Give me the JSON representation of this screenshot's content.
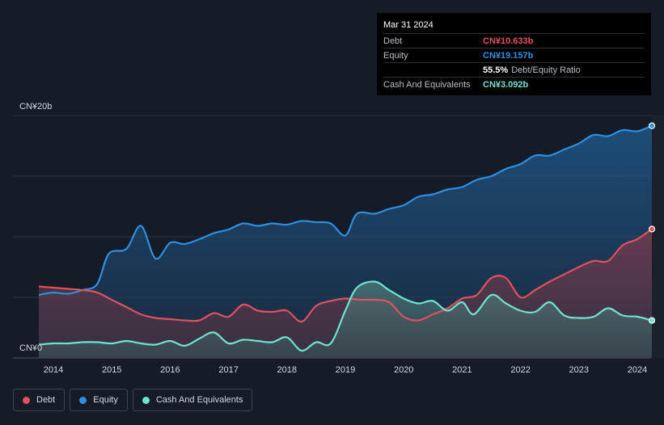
{
  "tooltip": {
    "date": "Mar 31 2024",
    "rows": [
      {
        "label": "Debt",
        "value": "CN¥10.633b",
        "color": "#e0505e"
      },
      {
        "label": "Equity",
        "value": "CN¥19.157b",
        "color": "#2d8fe0"
      },
      {
        "label": "",
        "value": "55.5%",
        "sub": "Debt/Equity Ratio",
        "color": "#ffffff"
      },
      {
        "label": "Cash And Equivalents",
        "value": "CN¥3.092b",
        "color": "#6fe3cf"
      }
    ]
  },
  "legend": [
    {
      "label": "Debt",
      "color": "#e0505e"
    },
    {
      "label": "Equity",
      "color": "#2d8fe0"
    },
    {
      "label": "Cash And Equivalents",
      "color": "#6fe3cf"
    }
  ],
  "chart_data": {
    "type": "area",
    "y_unit": "CN¥ billions",
    "ylim": [
      0,
      20
    ],
    "y_tick_labels": [
      "CN¥20b",
      "CN¥0"
    ],
    "x_ticks": [
      2014,
      2015,
      2016,
      2017,
      2018,
      2019,
      2020,
      2021,
      2022,
      2023,
      2024
    ],
    "xlim": [
      2013.27,
      2024.25
    ],
    "grid": true,
    "series": [
      {
        "name": "Equity",
        "color": "#2d8fe0",
        "points": [
          [
            2013.75,
            5.2
          ],
          [
            2014.0,
            5.4
          ],
          [
            2014.25,
            5.3
          ],
          [
            2014.5,
            5.6
          ],
          [
            2014.75,
            6.1
          ],
          [
            2014.95,
            8.6
          ],
          [
            2015.25,
            9.0
          ],
          [
            2015.5,
            10.9
          ],
          [
            2015.75,
            8.2
          ],
          [
            2016.0,
            9.5
          ],
          [
            2016.25,
            9.4
          ],
          [
            2016.5,
            9.8
          ],
          [
            2016.75,
            10.3
          ],
          [
            2017.0,
            10.6
          ],
          [
            2017.25,
            11.1
          ],
          [
            2017.5,
            10.9
          ],
          [
            2017.75,
            11.1
          ],
          [
            2018.0,
            11.0
          ],
          [
            2018.25,
            11.3
          ],
          [
            2018.5,
            11.2
          ],
          [
            2018.75,
            11.1
          ],
          [
            2019.0,
            10.1
          ],
          [
            2019.2,
            11.9
          ],
          [
            2019.5,
            11.9
          ],
          [
            2019.75,
            12.3
          ],
          [
            2020.0,
            12.6
          ],
          [
            2020.25,
            13.3
          ],
          [
            2020.5,
            13.5
          ],
          [
            2020.75,
            13.9
          ],
          [
            2021.0,
            14.1
          ],
          [
            2021.25,
            14.7
          ],
          [
            2021.5,
            15.0
          ],
          [
            2021.75,
            15.6
          ],
          [
            2022.0,
            16.0
          ],
          [
            2022.25,
            16.7
          ],
          [
            2022.5,
            16.7
          ],
          [
            2022.75,
            17.2
          ],
          [
            2023.0,
            17.7
          ],
          [
            2023.25,
            18.4
          ],
          [
            2023.5,
            18.3
          ],
          [
            2023.75,
            18.8
          ],
          [
            2024.0,
            18.7
          ],
          [
            2024.25,
            19.157
          ]
        ]
      },
      {
        "name": "Debt",
        "color": "#e0505e",
        "points": [
          [
            2013.75,
            5.9
          ],
          [
            2014.0,
            5.8
          ],
          [
            2014.25,
            5.7
          ],
          [
            2014.5,
            5.6
          ],
          [
            2014.75,
            5.4
          ],
          [
            2015.0,
            4.8
          ],
          [
            2015.25,
            4.2
          ],
          [
            2015.5,
            3.6
          ],
          [
            2015.75,
            3.3
          ],
          [
            2016.0,
            3.2
          ],
          [
            2016.25,
            3.1
          ],
          [
            2016.5,
            3.1
          ],
          [
            2016.75,
            3.7
          ],
          [
            2017.0,
            3.4
          ],
          [
            2017.25,
            4.4
          ],
          [
            2017.5,
            3.9
          ],
          [
            2017.75,
            3.8
          ],
          [
            2018.0,
            3.9
          ],
          [
            2018.25,
            3.0
          ],
          [
            2018.5,
            4.3
          ],
          [
            2018.75,
            4.7
          ],
          [
            2019.0,
            4.9
          ],
          [
            2019.25,
            4.8
          ],
          [
            2019.5,
            4.8
          ],
          [
            2019.75,
            4.6
          ],
          [
            2020.0,
            3.4
          ],
          [
            2020.25,
            3.1
          ],
          [
            2020.5,
            3.6
          ],
          [
            2020.75,
            4.1
          ],
          [
            2021.0,
            4.9
          ],
          [
            2021.25,
            5.2
          ],
          [
            2021.5,
            6.6
          ],
          [
            2021.75,
            6.6
          ],
          [
            2022.0,
            5.0
          ],
          [
            2022.25,
            5.6
          ],
          [
            2022.5,
            6.3
          ],
          [
            2022.75,
            6.9
          ],
          [
            2023.0,
            7.5
          ],
          [
            2023.25,
            8.0
          ],
          [
            2023.5,
            8.0
          ],
          [
            2023.75,
            9.3
          ],
          [
            2024.0,
            9.8
          ],
          [
            2024.25,
            10.633
          ]
        ]
      },
      {
        "name": "Cash And Equivalents",
        "color": "#6fe3cf",
        "points": [
          [
            2013.75,
            1.1
          ],
          [
            2014.0,
            1.2
          ],
          [
            2014.25,
            1.2
          ],
          [
            2014.5,
            1.3
          ],
          [
            2014.75,
            1.3
          ],
          [
            2015.0,
            1.2
          ],
          [
            2015.25,
            1.4
          ],
          [
            2015.5,
            1.2
          ],
          [
            2015.75,
            1.1
          ],
          [
            2016.0,
            1.4
          ],
          [
            2016.25,
            1.0
          ],
          [
            2016.5,
            1.6
          ],
          [
            2016.75,
            2.1
          ],
          [
            2017.0,
            1.2
          ],
          [
            2017.25,
            1.5
          ],
          [
            2017.5,
            1.4
          ],
          [
            2017.75,
            1.3
          ],
          [
            2018.0,
            1.7
          ],
          [
            2018.25,
            0.6
          ],
          [
            2018.5,
            1.3
          ],
          [
            2018.75,
            1.2
          ],
          [
            2019.0,
            3.9
          ],
          [
            2019.2,
            5.8
          ],
          [
            2019.5,
            6.3
          ],
          [
            2019.75,
            5.6
          ],
          [
            2020.0,
            4.9
          ],
          [
            2020.25,
            4.5
          ],
          [
            2020.5,
            4.7
          ],
          [
            2020.75,
            3.9
          ],
          [
            2021.0,
            4.6
          ],
          [
            2021.2,
            3.6
          ],
          [
            2021.5,
            5.2
          ],
          [
            2021.75,
            4.5
          ],
          [
            2022.0,
            3.9
          ],
          [
            2022.25,
            3.8
          ],
          [
            2022.5,
            4.6
          ],
          [
            2022.75,
            3.5
          ],
          [
            2023.0,
            3.3
          ],
          [
            2023.25,
            3.4
          ],
          [
            2023.5,
            4.1
          ],
          [
            2023.75,
            3.5
          ],
          [
            2024.0,
            3.4
          ],
          [
            2024.25,
            3.092
          ]
        ]
      }
    ]
  }
}
